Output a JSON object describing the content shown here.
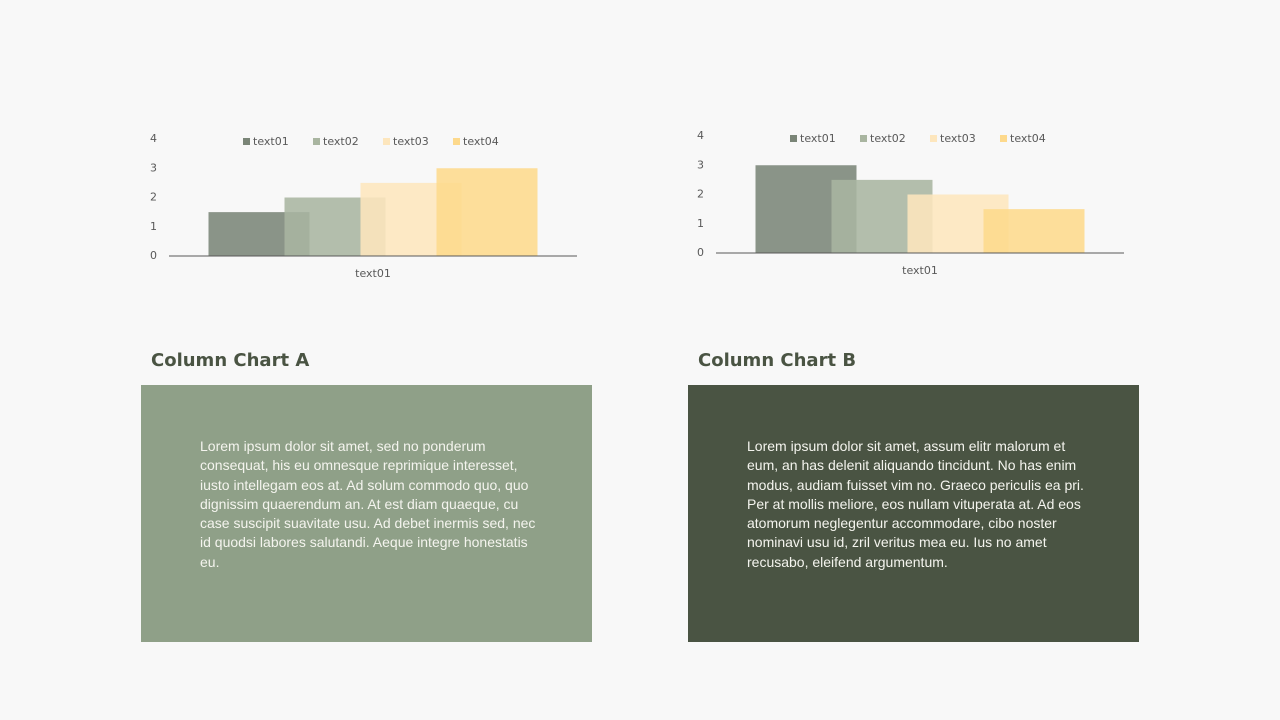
{
  "chart_data": [
    {
      "type": "bar",
      "categories": [
        "text01"
      ],
      "ylim": [
        0,
        4
      ],
      "yticks": [
        0,
        1,
        2,
        3,
        4
      ],
      "legend": "top",
      "series": [
        {
          "name": "text01",
          "color": "#7a8577",
          "values": [
            1.5
          ]
        },
        {
          "name": "text02",
          "color": "#a9b5a0",
          "values": [
            2
          ]
        },
        {
          "name": "text03",
          "color": "#fde6bd",
          "values": [
            2.5
          ]
        },
        {
          "name": "text04",
          "color": "#fdd98c",
          "values": [
            3
          ]
        }
      ]
    },
    {
      "type": "bar",
      "categories": [
        "text01"
      ],
      "ylim": [
        0,
        4
      ],
      "yticks": [
        0,
        1,
        2,
        3,
        4
      ],
      "legend": "top",
      "series": [
        {
          "name": "text01",
          "color": "#7a8577",
          "values": [
            3
          ]
        },
        {
          "name": "text02",
          "color": "#a9b5a0",
          "values": [
            2.5
          ]
        },
        {
          "name": "text03",
          "color": "#fde6bd",
          "values": [
            2
          ]
        },
        {
          "name": "text04",
          "color": "#fdd98c",
          "values": [
            1.5
          ]
        }
      ]
    }
  ],
  "panels": [
    {
      "heading": "Column Chart A",
      "body": "Lorem ipsum dolor sit amet, sed no ponderum consequat, his eu omnesque reprimique interesset, iusto intellegam eos at. Ad solum commodo quo, quo dignissim quaerendum an. At est diam quaeque, cu case suscipit suavitate usu. Ad debet inermis sed, nec id quodsi labores salutandi. Aeque integre honestatis eu."
    },
    {
      "heading": "Column Chart B",
      "body": "Lorem ipsum dolor sit amet, assum elitr malorum et eum, an has delenit aliquando tincidunt. No has enim modus, audiam fuisset vim no. Graeco periculis ea pri. Per at mollis meliore, eos nullam vituperata at. Ad eos atomorum neglegentur accommodare, cibo noster nominavi usu id, zril veritus mea eu. Ius no amet recusabo, eleifend argumentum."
    }
  ]
}
